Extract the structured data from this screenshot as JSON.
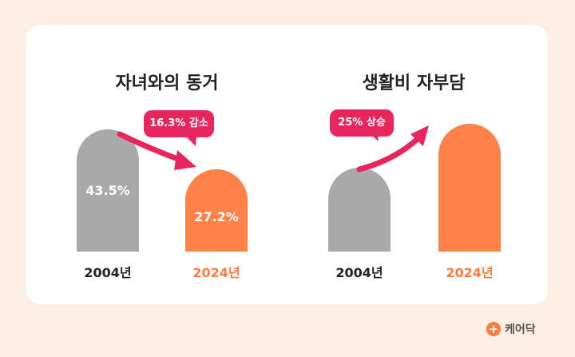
{
  "chart_data": [
    {
      "type": "bar",
      "title": "자녀와의 동거",
      "categories": [
        "2004년",
        "2024년"
      ],
      "values": [
        43.5,
        27.2
      ],
      "value_labels": [
        "43.5%",
        "27.2%"
      ],
      "annotation": "16.3% 감소",
      "colors": [
        "#a9a9a9",
        "#ff8248"
      ]
    },
    {
      "type": "bar",
      "title": "생활비 자부담",
      "categories": [
        "2004년",
        "2024년"
      ],
      "values": [
        null,
        null
      ],
      "annotation": "25% 상승",
      "colors": [
        "#a9a9a9",
        "#ff8248"
      ]
    }
  ],
  "brand": {
    "name": "케어닥",
    "icon": "plus-icon"
  },
  "colors": {
    "arrow": "#e8265e",
    "year_old": "#222222",
    "year_new": "#ff7a3d"
  }
}
